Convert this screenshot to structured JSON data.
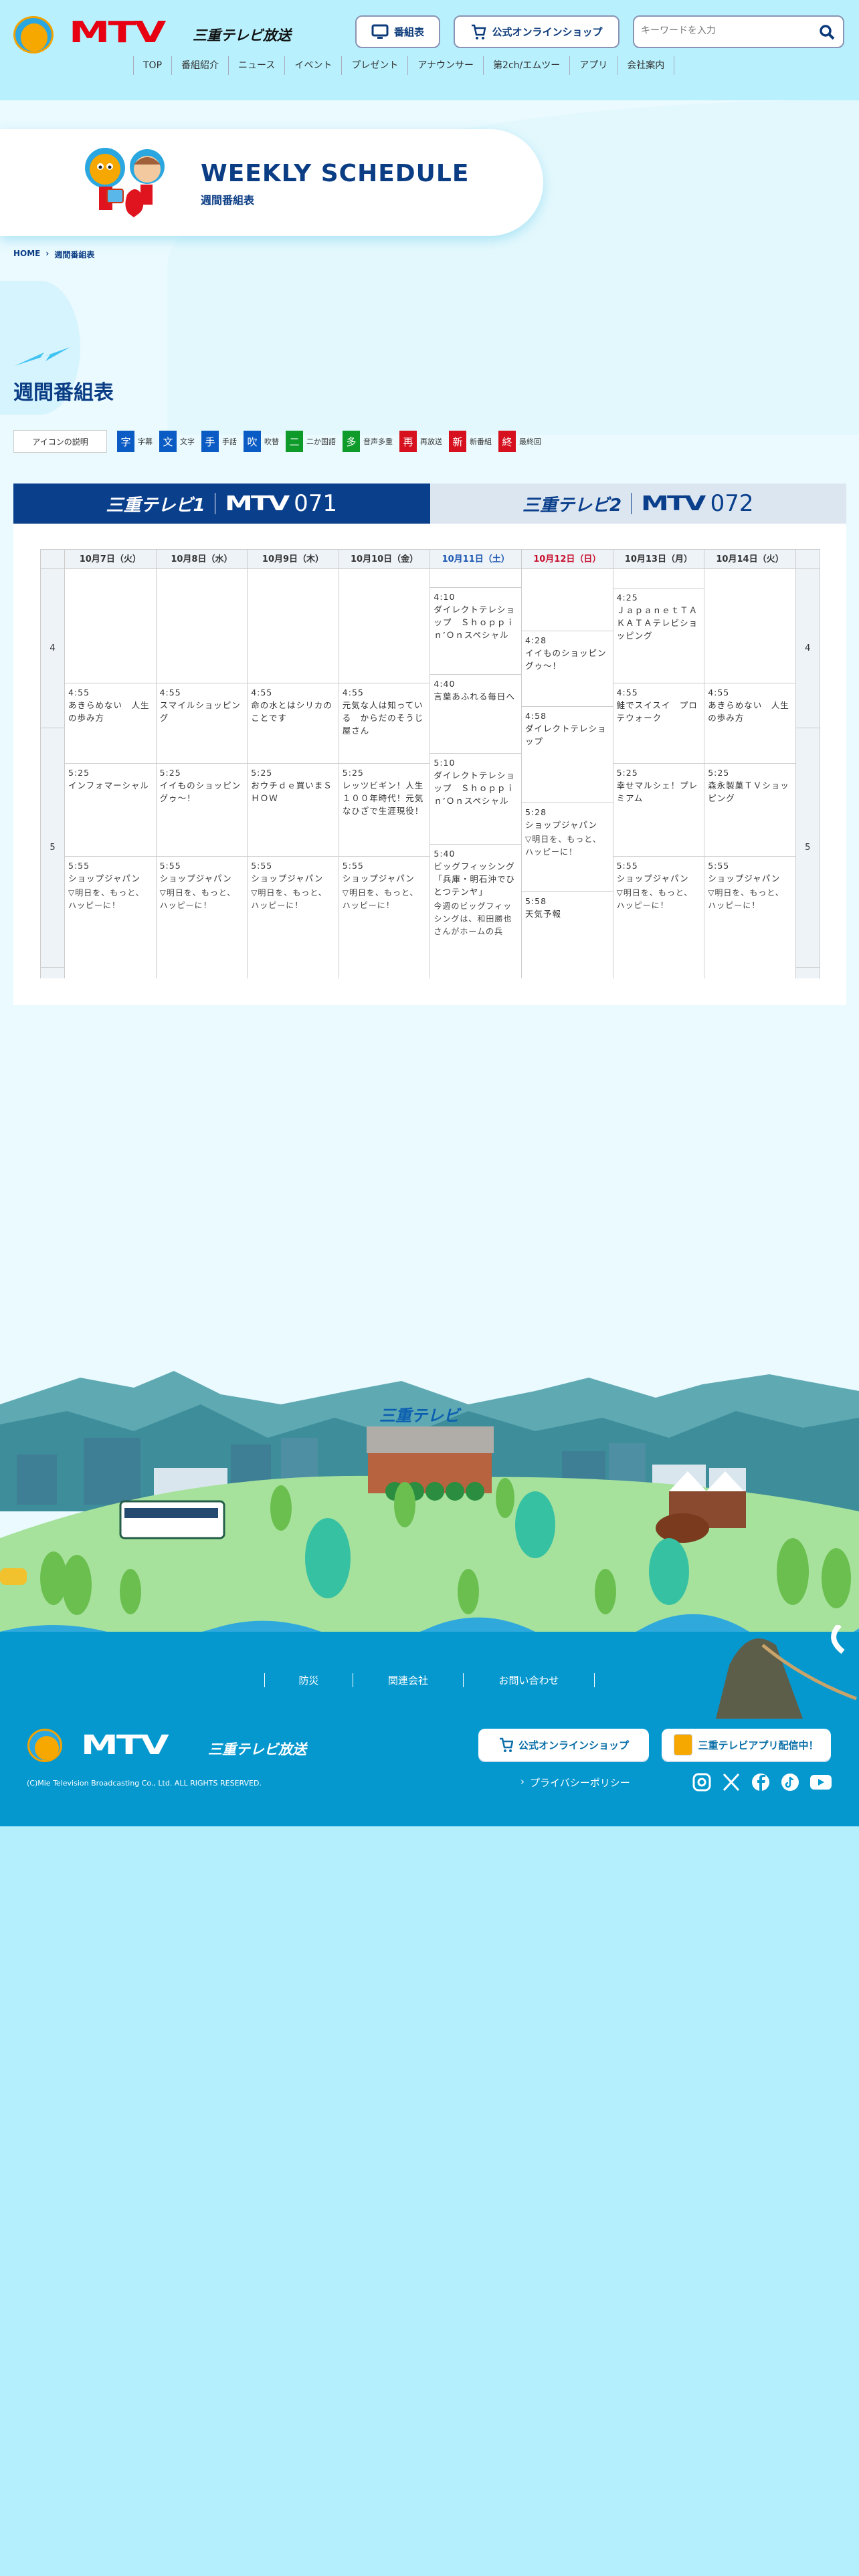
{
  "header": {
    "logo_text": "MTV",
    "logo_sub": "三重テレビ放送",
    "program_guide_button": "番組表",
    "shop_button": "公式オンラインショップ",
    "search": {
      "placeholder": "キーワードを入力",
      "icon": "search-icon"
    }
  },
  "nav": [
    "TOP",
    "番組紹介",
    "ニュース",
    "イベント",
    "プレゼント",
    "アナウンサー",
    "第2ch/エムツー",
    "アプリ",
    "会社案内"
  ],
  "hero": {
    "title": "WEEKLY SCHEDULE",
    "subtitle": "週間番組表"
  },
  "breadcrumb": {
    "home": "HOME",
    "separator": "›",
    "current": "週間番組表"
  },
  "page_title": "週間番組表",
  "legend": {
    "label": "アイコンの説明",
    "items": [
      {
        "icon": "字",
        "text": "字幕",
        "color": "#0a5bc4"
      },
      {
        "icon": "文",
        "text": "文字",
        "color": "#0a5bc4"
      },
      {
        "icon": "手",
        "text": "手話",
        "color": "#0a5bc4"
      },
      {
        "icon": "吹",
        "text": "吹替",
        "color": "#0a5bc4"
      },
      {
        "icon": "二",
        "text": "二か国語",
        "color": "#0f9b2a"
      },
      {
        "icon": "多",
        "text": "音声多重",
        "color": "#0f9b2a"
      },
      {
        "icon": "再",
        "text": "再放送",
        "color": "#d6101f"
      },
      {
        "icon": "新",
        "text": "新番組",
        "color": "#d6101f"
      },
      {
        "icon": "終",
        "text": "最終回",
        "color": "#d6101f"
      }
    ]
  },
  "channels": [
    {
      "name": "三重テレビ1",
      "brand": "MTV",
      "number": "071",
      "active": true
    },
    {
      "name": "三重テレビ2",
      "brand": "MTV",
      "number": "072",
      "active": false
    }
  ],
  "schedule": {
    "hours": [
      "4",
      "5"
    ],
    "days": [
      {
        "label": "10月7日（火）",
        "color": "#333333",
        "programs": [
          {
            "time": "4:55",
            "title": "あきらめない　人生の歩み方"
          },
          {
            "time": "5:25",
            "title": "インフォマーシャル"
          },
          {
            "time": "5:55",
            "title": "ショップジャパン",
            "desc": "▽明日を、もっと、ハッピーに！"
          }
        ]
      },
      {
        "label": "10月8日（水）",
        "color": "#333333",
        "programs": [
          {
            "time": "4:55",
            "title": "スマイルショッピング"
          },
          {
            "time": "5:25",
            "title": "イイものショッピングゥ～！"
          },
          {
            "time": "5:55",
            "title": "ショップジャパン",
            "desc": "▽明日を、もっと、ハッピーに！"
          }
        ]
      },
      {
        "label": "10月9日（木）",
        "color": "#333333",
        "programs": [
          {
            "time": "4:55",
            "title": "命の水とはシリカのことです"
          },
          {
            "time": "5:25",
            "title": "おウチｄｅ買いまＳＨＯＷ"
          },
          {
            "time": "5:55",
            "title": "ショップジャパン",
            "desc": "▽明日を、もっと、ハッピーに！"
          }
        ]
      },
      {
        "label": "10月10日（金）",
        "color": "#333333",
        "programs": [
          {
            "time": "4:55",
            "title": "元気な人は知っている　からだのそうじ屋さん"
          },
          {
            "time": "5:25",
            "title": "レッツビギン！人生１００年時代！元気なひざで生涯現役！"
          },
          {
            "time": "5:55",
            "title": "ショップジャパン",
            "desc": "▽明日を、もっと、ハッピーに！"
          }
        ]
      },
      {
        "label": "10月11日（土）",
        "color": "#1a56b0",
        "programs": [
          {
            "time": "4:10",
            "title": "ダイレクトテレショップ　Ｓｈｏｐｐｉｎ’Ｏｎスペシャル"
          },
          {
            "time": "4:40",
            "title": "言葉あふれる毎日へ"
          },
          {
            "time": "5:10",
            "title": "ダイレクトテレショップ　Ｓｈｏｐｐｉｎ’Ｏｎスペシャル"
          },
          {
            "time": "5:40",
            "title": "ビッグフィッシング　「兵庫・明石沖でひとつテンヤ」",
            "desc": "今週のビッグフィッシングは、和田勝也さんがホームの兵"
          }
        ]
      },
      {
        "label": "10月12日（日）",
        "color": "#c8102e",
        "programs": [
          {
            "time": "4:28",
            "title": "イイものショッピングゥ～！"
          },
          {
            "time": "4:58",
            "title": "ダイレクトテレショップ"
          },
          {
            "time": "5:28",
            "title": "ショップジャパン",
            "desc": "▽明日を、もっと、ハッピーに！"
          },
          {
            "time": "5:58",
            "title": "天気予報"
          }
        ]
      },
      {
        "label": "10月13日（月）",
        "color": "#333333",
        "programs": [
          {
            "time": "4:25",
            "title": "ＪａｐａｎｅｔＴＡＫＡＴＡテレビショッピング"
          },
          {
            "time": "4:55",
            "title": "鮭でスイスイ　プロテウォーク"
          },
          {
            "time": "5:25",
            "title": "幸せマルシェ！プレミアム"
          },
          {
            "time": "5:55",
            "title": "ショップジャパン",
            "desc": "▽明日を、もっと、ハッピーに！"
          }
        ]
      },
      {
        "label": "10月14日（火）",
        "color": "#333333",
        "programs": [
          {
            "time": "4:55",
            "title": "あきらめない　人生の歩み方"
          },
          {
            "time": "5:25",
            "title": "森永製菓ＴＶショッピング"
          },
          {
            "time": "5:55",
            "title": "ショップジャパン",
            "desc": "▽明日を、もっと、ハッピーに！"
          }
        ]
      }
    ]
  },
  "illustration": {
    "building_sign": "三重テレビ"
  },
  "footer": {
    "links": [
      "防災",
      "関連会社",
      "お問い合わせ"
    ],
    "logo_text": "MTV",
    "logo_sub": "三重テレビ放送",
    "shop_button": "公式オンラインショップ",
    "app_button": "三重テレビアプリ配信中！",
    "privacy": "プライバシーポリシー",
    "copyright": "(C)Mie Television Broadcasting Co., Ltd. ALL RIGHTS RESERVED.",
    "social": [
      "instagram-icon",
      "x-icon",
      "facebook-icon",
      "tiktok-icon",
      "youtube-icon"
    ]
  },
  "colors": {
    "navy": "#0b3d85",
    "accent_red": "#e60012",
    "footer_blue": "#0598cf",
    "sky": "#b8f1fd"
  }
}
